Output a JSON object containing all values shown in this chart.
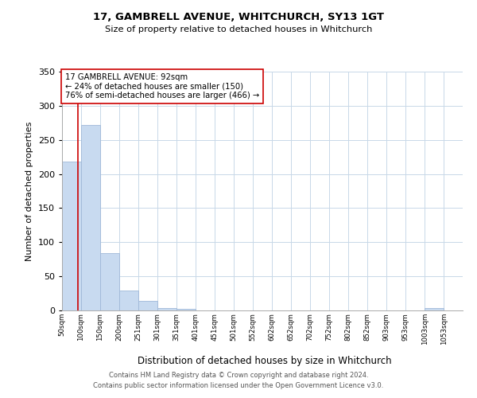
{
  "title": "17, GAMBRELL AVENUE, WHITCHURCH, SY13 1GT",
  "subtitle": "Size of property relative to detached houses in Whitchurch",
  "xlabel": "Distribution of detached houses by size in Whitchurch",
  "ylabel": "Number of detached properties",
  "bar_labels": [
    "50sqm",
    "100sqm",
    "150sqm",
    "200sqm",
    "251sqm",
    "301sqm",
    "351sqm",
    "401sqm",
    "451sqm",
    "501sqm",
    "552sqm",
    "602sqm",
    "652sqm",
    "702sqm",
    "752sqm",
    "802sqm",
    "852sqm",
    "903sqm",
    "953sqm",
    "1003sqm",
    "1053sqm"
  ],
  "bar_values": [
    218,
    272,
    84,
    29,
    14,
    4,
    2,
    0,
    0,
    0,
    0,
    0,
    0,
    0,
    0,
    0,
    0,
    0,
    0,
    3,
    0
  ],
  "bar_color": "#c8daf0",
  "bar_edge_color": "#a0b8d8",
  "ylim": [
    0,
    350
  ],
  "yticks": [
    0,
    50,
    100,
    150,
    200,
    250,
    300,
    350
  ],
  "property_line_x": 92,
  "property_line_color": "#cc0000",
  "annotation_text": "17 GAMBRELL AVENUE: 92sqm\n← 24% of detached houses are smaller (150)\n76% of semi-detached houses are larger (466) →",
  "annotation_box_color": "#ffffff",
  "annotation_border_color": "#cc0000",
  "footer_line1": "Contains HM Land Registry data © Crown copyright and database right 2024.",
  "footer_line2": "Contains public sector information licensed under the Open Government Licence v3.0.",
  "background_color": "#ffffff",
  "grid_color": "#c8d8e8",
  "bin_edges": [
    50,
    100,
    150,
    200,
    251,
    301,
    351,
    401,
    451,
    501,
    552,
    602,
    652,
    702,
    752,
    802,
    852,
    903,
    953,
    1003,
    1053,
    1103
  ]
}
